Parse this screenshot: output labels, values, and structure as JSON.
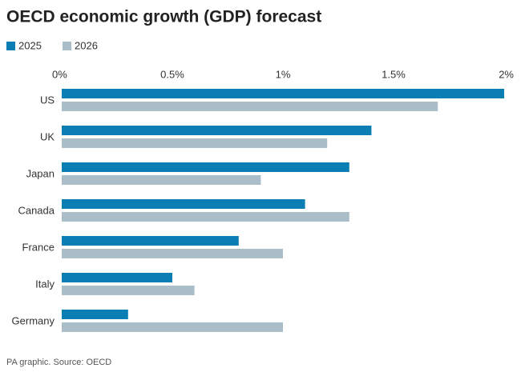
{
  "chart_data": {
    "type": "hbar",
    "title": "OECD economic growth (GDP) forecast",
    "source": "PA graphic. Source: OECD",
    "categories": [
      "US",
      "UK",
      "Japan",
      "Canada",
      "France",
      "Italy",
      "Germany"
    ],
    "series": [
      {
        "name": "2025",
        "color": "#0b7eb3",
        "values": [
          2.0,
          1.4,
          1.3,
          1.1,
          0.8,
          0.5,
          0.3
        ]
      },
      {
        "name": "2026",
        "color": "#a9bec8",
        "values": [
          1.7,
          1.2,
          0.9,
          1.3,
          1.0,
          0.6,
          1.0
        ]
      }
    ],
    "xlim": [
      0,
      2
    ],
    "xticks": [
      {
        "value": 0,
        "label": "0%"
      },
      {
        "value": 0.5,
        "label": "0.5%"
      },
      {
        "value": 1,
        "label": "1%"
      },
      {
        "value": 1.5,
        "label": "1.5%"
      },
      {
        "value": 2,
        "label": "2%"
      }
    ],
    "grid": false
  }
}
